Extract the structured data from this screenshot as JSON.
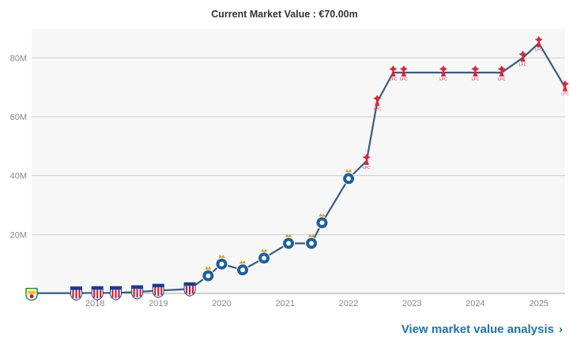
{
  "header": {
    "current_value_label": "Current Market Value : €70.00m"
  },
  "footer": {
    "analysis_link": "View market value analysis",
    "chevron_icon": "chevron-right-icon"
  },
  "colors": {
    "line": "#3a5a7e",
    "plot_bg": "#f7f7f7",
    "grid": "#cccccc",
    "tick_text": "#888888",
    "link": "#1d75a3",
    "club_porto": "#1d5f9c",
    "club_junior": "#c8102e",
    "club_liverpool": "#d8283b",
    "club_first": "#2e8b3a"
  },
  "chart_data": {
    "type": "line",
    "title": "Current Market Value : €70.00m",
    "xlabel": "",
    "ylabel": "",
    "x_ticks": [
      "2018",
      "2019",
      "2020",
      "2021",
      "2022",
      "2023",
      "2024",
      "2025"
    ],
    "y_ticks": [
      "20M",
      "40M",
      "60M",
      "80M"
    ],
    "xlim": [
      "2017-01-01",
      "2025-06-01"
    ],
    "ylim": [
      0,
      90
    ],
    "grid": true,
    "points": [
      {
        "date": "2017-01-01",
        "value": 0.1,
        "club": "first"
      },
      {
        "date": "2017-09-15",
        "value": 0.1,
        "club": "junior"
      },
      {
        "date": "2018-01-15",
        "value": 0.2,
        "club": "junior"
      },
      {
        "date": "2018-05-01",
        "value": 0.2,
        "club": "junior"
      },
      {
        "date": "2018-09-01",
        "value": 0.5,
        "club": "junior"
      },
      {
        "date": "2019-01-01",
        "value": 1,
        "club": "junior"
      },
      {
        "date": "2019-07-01",
        "value": 1.5,
        "club": "junior"
      },
      {
        "date": "2019-10-15",
        "value": 6,
        "club": "porto"
      },
      {
        "date": "2020-01-01",
        "value": 10,
        "club": "porto"
      },
      {
        "date": "2020-05-01",
        "value": 8,
        "club": "porto"
      },
      {
        "date": "2020-09-01",
        "value": 12,
        "club": "porto"
      },
      {
        "date": "2021-01-20",
        "value": 17,
        "club": "porto"
      },
      {
        "date": "2021-06-01",
        "value": 17,
        "club": "porto"
      },
      {
        "date": "2021-08-01",
        "value": 24,
        "club": "porto"
      },
      {
        "date": "2022-01-01",
        "value": 39,
        "club": "porto"
      },
      {
        "date": "2022-04-15",
        "value": 45,
        "club": "liverpool"
      },
      {
        "date": "2022-06-15",
        "value": 65,
        "club": "liverpool"
      },
      {
        "date": "2022-09-15",
        "value": 75,
        "club": "liverpool"
      },
      {
        "date": "2022-11-15",
        "value": 75,
        "club": "liverpool"
      },
      {
        "date": "2023-07-01",
        "value": 75,
        "club": "liverpool"
      },
      {
        "date": "2024-01-01",
        "value": 75,
        "club": "liverpool"
      },
      {
        "date": "2024-06-01",
        "value": 75,
        "club": "liverpool"
      },
      {
        "date": "2024-10-01",
        "value": 80,
        "club": "liverpool"
      },
      {
        "date": "2025-01-01",
        "value": 85,
        "club": "liverpool"
      },
      {
        "date": "2025-06-01",
        "value": 70,
        "club": "liverpool"
      }
    ]
  }
}
